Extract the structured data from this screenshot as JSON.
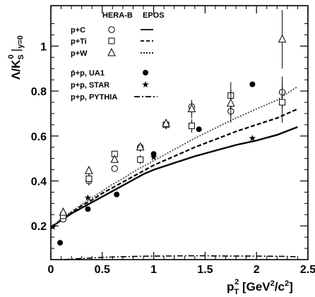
{
  "chart_data": {
    "type": "scatter",
    "title": "",
    "xlabel": "p_T^2 [GeV^2/c^2]",
    "xlabel_parts": {
      "p": "p",
      "sub": "T",
      "sup": "2",
      "unit_open": " [GeV",
      "unit_sup": "2",
      "unit_mid": "/c",
      "unit_sup2": "2",
      "unit_close": "]"
    },
    "ylabel": "Λ/K0S |y=0",
    "ylabel_parts": {
      "lam": "Λ/K",
      "sup": "0",
      "sub": "S",
      "bar": "|",
      "ysub": "y=0"
    },
    "xlim": [
      0,
      2.5
    ],
    "ylim": [
      0.05,
      1.18
    ],
    "x_ticks": [
      0,
      0.5,
      1,
      1.5,
      2,
      2.5
    ],
    "x_tick_labels": [
      "0",
      "0.5",
      "1",
      "1.5",
      "2",
      "2.5"
    ],
    "y_ticks": [
      0.2,
      0.4,
      0.6,
      0.8,
      1.0
    ],
    "y_tick_labels": [
      "0.2",
      "0.4",
      "0.6",
      "0.8",
      "1"
    ],
    "legend": {
      "header_herab": "HERA-B",
      "header_epos": "EPOS",
      "rows": [
        {
          "label": "p+C",
          "marker": "circle",
          "line": "solid"
        },
        {
          "label": "p+Ti",
          "marker": "square",
          "line": "dashed"
        },
        {
          "label": "p+W",
          "marker": "triangle",
          "line": "dotted"
        },
        {
          "label": "p̄+p, UA1",
          "marker": "dot"
        },
        {
          "label": "p+p, STAR",
          "marker": "star"
        },
        {
          "label": "p+p, PYTHIA",
          "line": "dashdot"
        }
      ]
    },
    "series": [
      {
        "name": "p+C",
        "marker": "circle",
        "points": [
          [
            0.12,
            0.23,
            0.01
          ],
          [
            0.37,
            0.4,
            0.02
          ],
          [
            0.62,
            0.455,
            0.01
          ],
          [
            0.87,
            0.55,
            0.02
          ],
          [
            1.12,
            0.65,
            0.02
          ],
          [
            1.37,
            0.73,
            0.03
          ],
          [
            1.75,
            0.71,
            0.05
          ],
          [
            2.25,
            0.795,
            0.07
          ]
        ]
      },
      {
        "name": "p+Ti",
        "marker": "square",
        "points": [
          [
            0.12,
            0.245,
            0.01
          ],
          [
            0.37,
            0.41,
            0.02
          ],
          [
            0.62,
            0.52,
            0.01
          ],
          [
            0.87,
            0.495,
            0.02
          ],
          [
            1.12,
            0.65,
            0.02
          ],
          [
            1.37,
            0.645,
            0.03
          ],
          [
            1.75,
            0.78,
            0.06
          ],
          [
            2.25,
            0.75,
            0.09
          ]
        ]
      },
      {
        "name": "p+W",
        "marker": "triangle",
        "points": [
          [
            0.12,
            0.26,
            0.01
          ],
          [
            0.37,
            0.445,
            0.02
          ],
          [
            0.62,
            0.495,
            0.01
          ],
          [
            0.87,
            0.55,
            0.02
          ],
          [
            1.12,
            0.655,
            0.02
          ],
          [
            1.37,
            0.72,
            0.04
          ],
          [
            1.75,
            0.745,
            0.06
          ],
          [
            2.25,
            1.03,
            0.13
          ]
        ]
      },
      {
        "name": "p̄+p, UA1",
        "marker": "dot",
        "points": [
          [
            0.09,
            0.125
          ],
          [
            0.36,
            0.275
          ],
          [
            0.64,
            0.34
          ],
          [
            1.0,
            0.52
          ],
          [
            1.44,
            0.63
          ],
          [
            1.96,
            0.83
          ]
        ]
      },
      {
        "name": "p+p, STAR",
        "marker": "star",
        "points": [
          [
            0.02,
            0.195
          ],
          [
            0.36,
            0.325
          ],
          [
            1.0,
            0.505
          ],
          [
            1.96,
            0.59
          ]
        ]
      }
    ],
    "curves": [
      {
        "name": "EPOS p+C",
        "style": "solid",
        "x": [
          0.02,
          0.1,
          0.2,
          0.3,
          0.4,
          0.5,
          0.6,
          0.7,
          0.8,
          0.9,
          1.0,
          1.2,
          1.4,
          1.6,
          1.8,
          2.0,
          2.2,
          2.4
        ],
        "y": [
          0.2,
          0.225,
          0.255,
          0.28,
          0.305,
          0.33,
          0.355,
          0.38,
          0.405,
          0.43,
          0.45,
          0.48,
          0.51,
          0.535,
          0.56,
          0.58,
          0.605,
          0.64
        ]
      },
      {
        "name": "EPOS p+Ti",
        "style": "dashed",
        "x": [
          0.02,
          0.1,
          0.2,
          0.3,
          0.4,
          0.5,
          0.6,
          0.7,
          0.8,
          0.9,
          1.0,
          1.2,
          1.4,
          1.6,
          1.8,
          2.0,
          2.2,
          2.4
        ],
        "y": [
          0.2,
          0.228,
          0.26,
          0.29,
          0.315,
          0.345,
          0.37,
          0.395,
          0.42,
          0.445,
          0.47,
          0.51,
          0.55,
          0.585,
          0.62,
          0.65,
          0.68,
          0.72
        ]
      },
      {
        "name": "EPOS p+W",
        "style": "dotted",
        "x": [
          0.02,
          0.1,
          0.2,
          0.3,
          0.4,
          0.5,
          0.6,
          0.7,
          0.8,
          0.9,
          1.0,
          1.2,
          1.4,
          1.6,
          1.8,
          2.0,
          2.2,
          2.4
        ],
        "y": [
          0.2,
          0.23,
          0.263,
          0.295,
          0.325,
          0.355,
          0.385,
          0.41,
          0.44,
          0.465,
          0.49,
          0.54,
          0.59,
          0.635,
          0.68,
          0.72,
          0.76,
          0.82
        ]
      },
      {
        "name": "PYTHIA p+p",
        "style": "dashdot",
        "x": [
          0.13,
          0.3,
          0.5,
          0.7,
          0.9,
          1.1,
          1.3,
          1.5,
          1.7,
          1.9,
          2.1,
          2.3,
          2.38
        ],
        "y": [
          0.05,
          0.055,
          0.06,
          0.063,
          0.065,
          0.066,
          0.067,
          0.067,
          0.066,
          0.066,
          0.065,
          0.064,
          0.063
        ]
      }
    ]
  }
}
